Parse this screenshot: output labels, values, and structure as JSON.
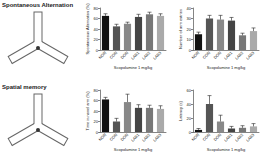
{
  "row_titles": [
    "Spontaneous Alternation",
    "Spatial memory"
  ],
  "chart_data": [
    {
      "type": "bar",
      "ylabel": "Spontaneous Alternation (%)",
      "xlabel": "Scopolamine 1 mg/kg",
      "categories": [
        "NOR",
        "CON",
        "DON",
        "LAB1",
        "LAB2",
        "LAB3"
      ],
      "values": [
        65,
        45,
        50,
        63,
        68,
        65
      ],
      "errors": [
        4,
        4,
        3,
        5,
        4,
        4
      ],
      "colors": [
        "#111111",
        "#555555",
        "#888888",
        "#444444",
        "#777777",
        "#aaaaaa"
      ],
      "ylim": [
        0,
        80
      ],
      "yticks": [
        0,
        20,
        40,
        60,
        80
      ]
    },
    {
      "type": "bar",
      "ylabel": "Number of arm entries",
      "xlabel": "Scopolamine 1 mg/kg",
      "categories": [
        "NOR",
        "CON",
        "DON",
        "LAB1",
        "LAB2",
        "LAB3"
      ],
      "values": [
        15,
        30,
        29,
        28,
        14,
        18
      ],
      "errors": [
        2,
        3,
        4,
        3,
        2,
        3
      ],
      "colors": [
        "#111111",
        "#555555",
        "#888888",
        "#444444",
        "#777777",
        "#aaaaaa"
      ],
      "ylim": [
        0,
        40
      ],
      "yticks": [
        0,
        10,
        20,
        30,
        40
      ]
    },
    {
      "type": "bar",
      "ylabel": "Time in novel arm (%)",
      "xlabel": "Scopolamine 1 mg/kg",
      "categories": [
        "NOR",
        "CON",
        "DON",
        "LAB1",
        "LAB2",
        "LAB3"
      ],
      "values": [
        62,
        20,
        57,
        46,
        46,
        44
      ],
      "errors": [
        4,
        6,
        15,
        6,
        5,
        6
      ],
      "colors": [
        "#111111",
        "#555555",
        "#888888",
        "#444444",
        "#777777",
        "#aaaaaa"
      ],
      "ylim": [
        0,
        80
      ],
      "yticks": [
        0,
        20,
        40,
        60,
        80
      ]
    },
    {
      "type": "bar",
      "ylabel": "Latency (s)",
      "xlabel": "Scopolamine 1 mg/kg",
      "categories": [
        "NOR",
        "CON",
        "DON",
        "LAB1",
        "LAB2",
        "LAB3"
      ],
      "values": [
        3,
        40,
        15,
        5,
        6,
        8
      ],
      "errors": [
        2,
        12,
        9,
        3,
        3,
        4
      ],
      "colors": [
        "#111111",
        "#555555",
        "#888888",
        "#444444",
        "#777777",
        "#aaaaaa"
      ],
      "ylim": [
        0,
        60
      ],
      "yticks": [
        0,
        20,
        40,
        60
      ]
    }
  ]
}
